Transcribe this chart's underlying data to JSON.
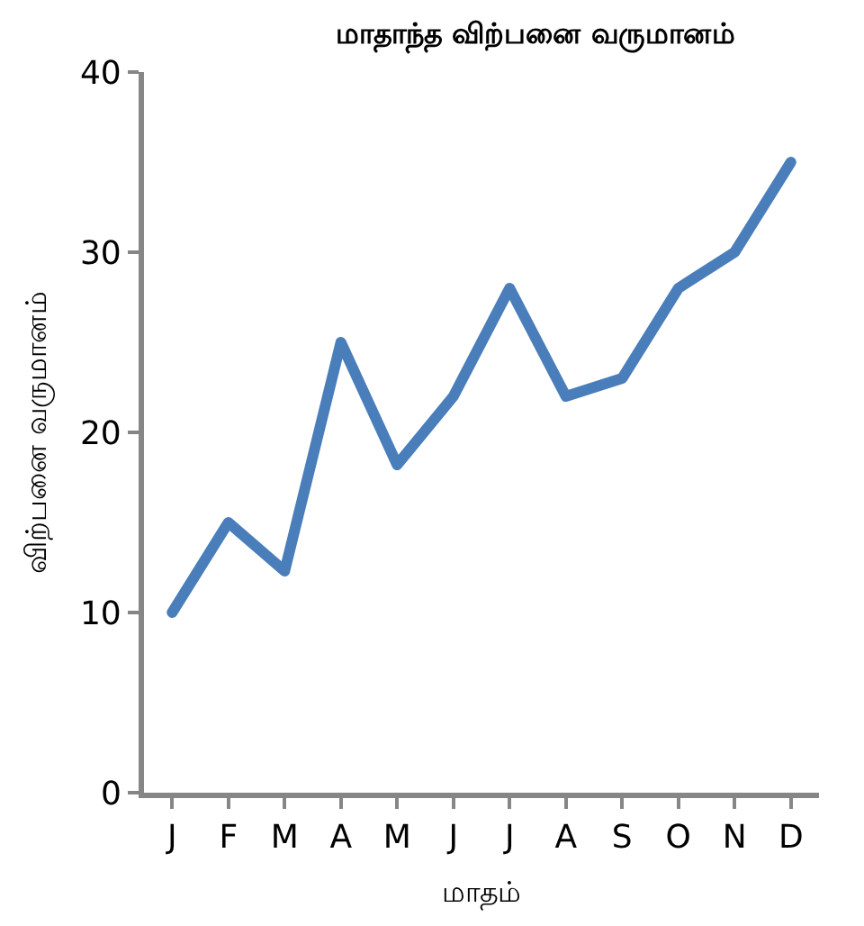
{
  "chart_data": {
    "type": "line",
    "title": "மாதாந்த விற்பனை வருமானம்",
    "xlabel": "மாதம்",
    "ylabel": "விற்பனை வருமானம்",
    "categories": [
      "J",
      "F",
      "M",
      "A",
      "M",
      "J",
      "J",
      "A",
      "S",
      "O",
      "N",
      "D"
    ],
    "series": [
      {
        "color": "#4a7ebb",
        "values": [
          10,
          15,
          12.3,
          25,
          18.2,
          22,
          28,
          22,
          23,
          28,
          30,
          35
        ]
      }
    ],
    "ylim": [
      0,
      40
    ],
    "yticks": [
      0,
      10,
      20,
      30,
      40
    ],
    "marker": "none",
    "line_style": "solid"
  }
}
